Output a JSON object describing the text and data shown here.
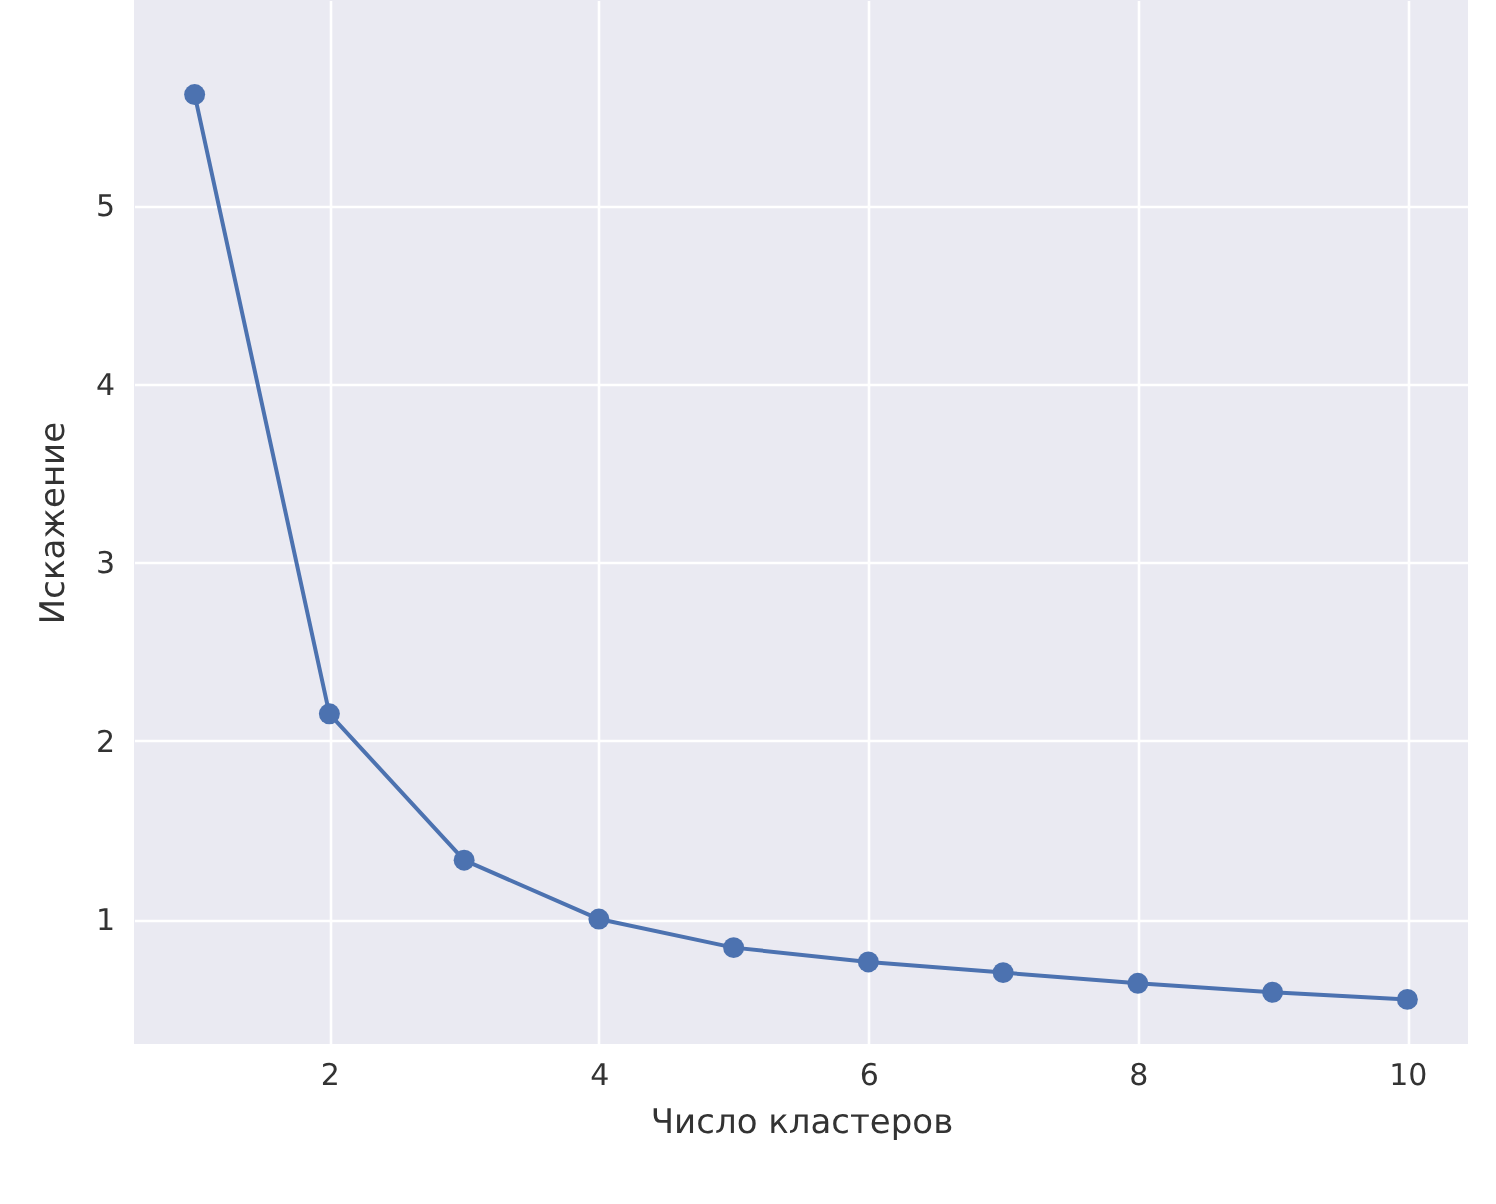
{
  "chart_data": {
    "type": "line",
    "xlabel": "Число кластеров",
    "ylabel": "Искажение",
    "x": [
      1,
      2,
      3,
      4,
      5,
      6,
      7,
      8,
      9,
      10
    ],
    "series": [
      {
        "color": "#4c72b0",
        "values": [
          5.62,
          2.15,
          1.33,
          1.0,
          0.84,
          0.76,
          0.7,
          0.64,
          0.59,
          0.55
        ]
      }
    ],
    "xlim": [
      0.55,
      10.45
    ],
    "xticks": [
      2,
      4,
      6,
      8,
      10
    ],
    "ylim": [
      0.3,
      6.15
    ],
    "yticks": [
      1,
      2,
      3,
      4,
      5
    ],
    "grid": true,
    "marker": "circle",
    "line_style": "solid"
  }
}
